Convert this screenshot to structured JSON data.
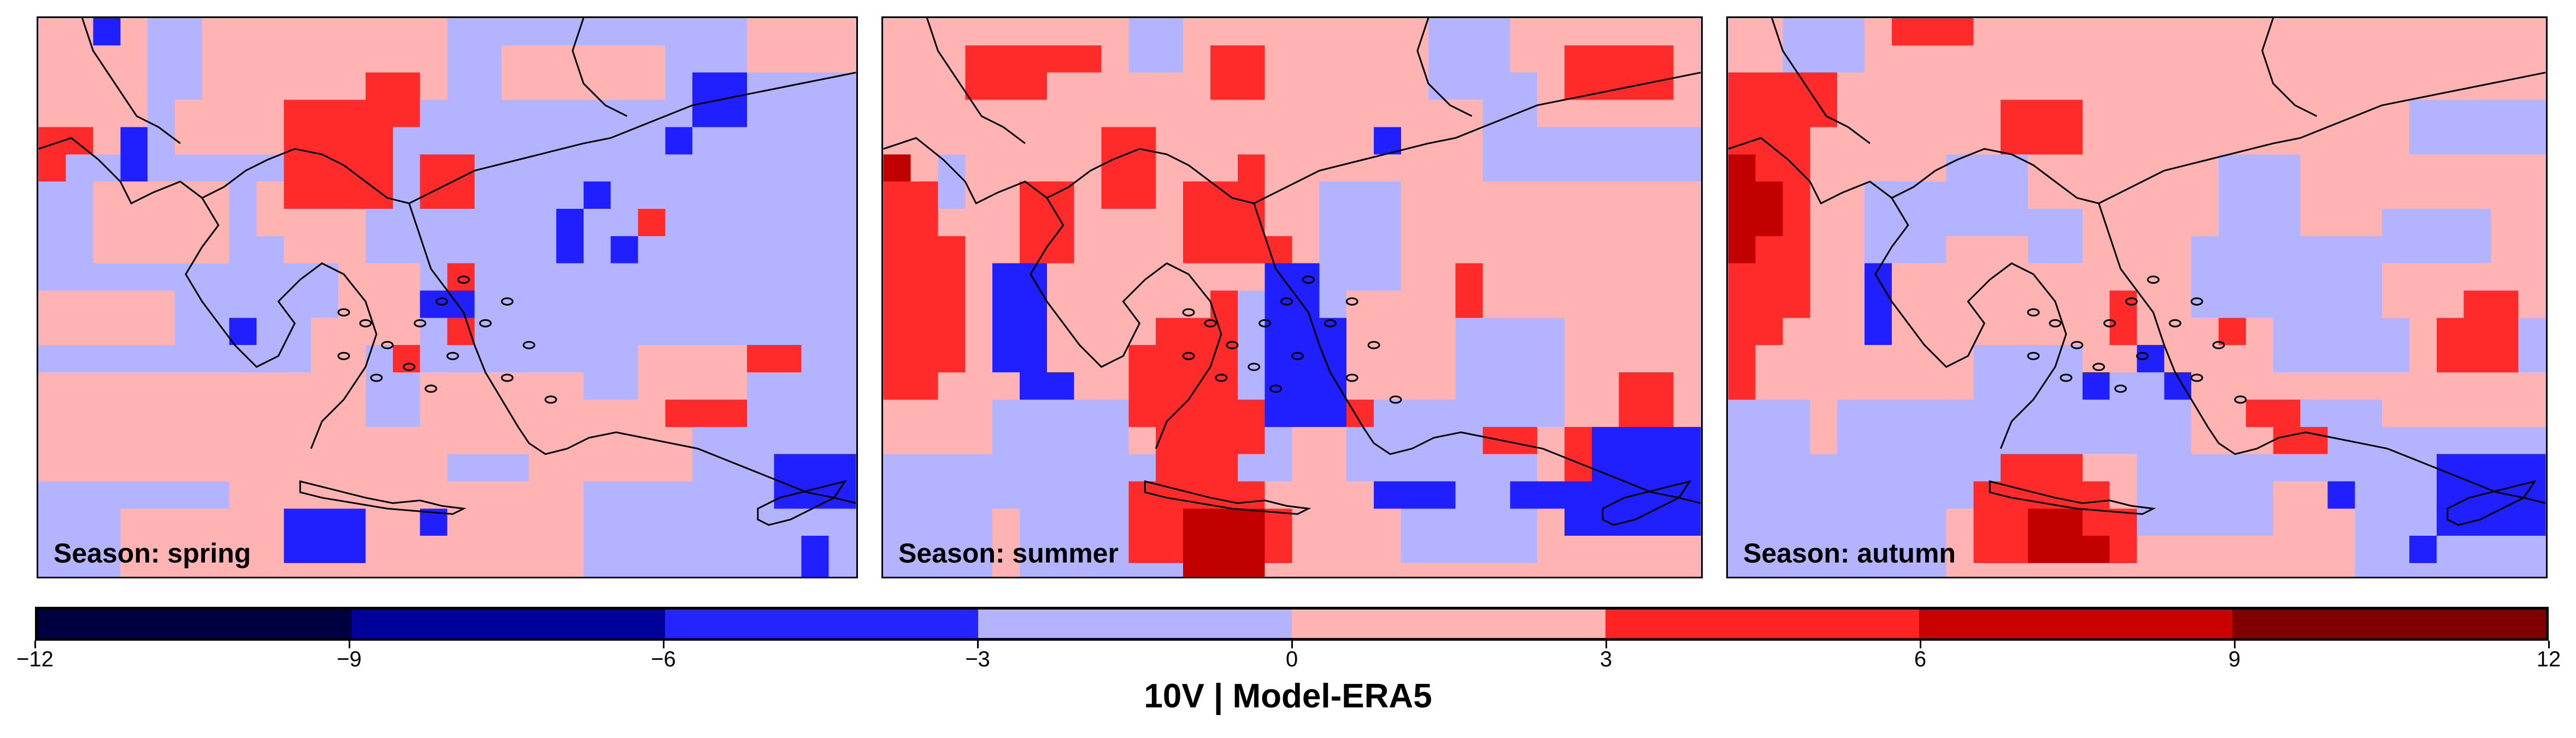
{
  "map_data": {
    "region": "Greece, Aegean Sea and Eastern Mediterranean",
    "layout": "three map panels side by side with a shared horizontal colorbar below",
    "background_class": "0 to -3",
    "panels": [
      {
        "label": "Season: spring",
        "season": "spring",
        "dominant_pattern": "mostly light blue (0 to -3) with light red (0 to 3) patches over land; scattered blue (-3 to -6) cells over the Aegean and off Cyprus; red (3 to 6) along the Ionian edge and northern Greece"
      },
      {
        "label": "Season: summer",
        "season": "summer",
        "dominant_pattern": "mostly light red (0 to 3); red and dark red (6 to 9) along the Ionian edge and south of Crete; blue (-3 to -6) cells in the central Aegean and near Cyprus"
      },
      {
        "label": "Season: autumn",
        "season": "autumn",
        "dominant_pattern": "mostly light red (0 to 3); red (3 to 6) and dark red along the western edge and south of Crete; blue cells near Cyprus and small spots in the Aegean"
      }
    ]
  },
  "colorbar": {
    "title": "10V | Model-ERA5",
    "ticks": [
      "−12",
      "−9",
      "−6",
      "−3",
      "0",
      "3",
      "6",
      "9",
      "12"
    ],
    "tick_values": [
      -12,
      -9,
      -6,
      -3,
      0,
      3,
      6,
      9,
      12
    ],
    "colors": [
      "#000040",
      "#00009b",
      "#2424ff",
      "#b3b3ff",
      "#ffb3b3",
      "#ff2424",
      "#c80000",
      "#800000"
    ]
  },
  "colors": {
    "lightblue": "#b3b3ff",
    "lightred": "#ffb3b3",
    "red": "#ff2a2a",
    "darkred": "#c30000",
    "blue": "#1f1fff",
    "coastline": "#000000"
  }
}
